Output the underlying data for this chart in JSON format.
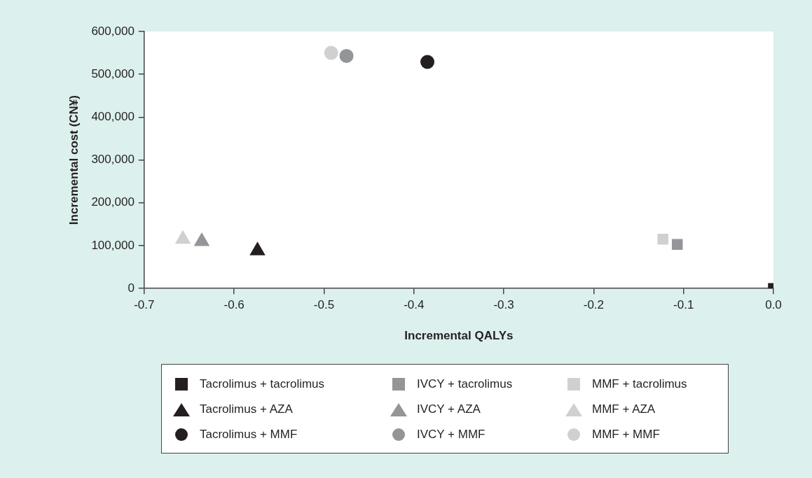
{
  "chart_data": {
    "type": "scatter",
    "xlabel": "Incremental QALYs",
    "ylabel": "Incremental cost (CN¥)",
    "xlim": [
      -0.7,
      0.0
    ],
    "xticks": [
      -0.7,
      -0.6,
      -0.5,
      -0.4,
      -0.3,
      -0.2,
      -0.1,
      {
        "value": 0,
        "label": "0.0"
      }
    ],
    "ylim": [
      0,
      600000
    ],
    "yticks": [
      0,
      {
        "value": 100000,
        "label": "100,000"
      },
      {
        "value": 200000,
        "label": "200,000"
      },
      {
        "value": 300000,
        "label": "300,000"
      },
      {
        "value": 400000,
        "label": "400,000"
      },
      {
        "value": 500000,
        "label": "500,000"
      },
      {
        "value": 600000,
        "label": "600,000"
      }
    ],
    "grid": false,
    "legend": "bottom",
    "series": [
      {
        "name": "Tacrolimus + tacrolimus",
        "color": "#231f20",
        "marker": "square",
        "x": [
          0.0
        ],
        "values": [
          0
        ]
      },
      {
        "name": "Tacrolimus + AZA",
        "color": "#231f20",
        "marker": "triangle",
        "x": [
          -0.574
        ],
        "values": [
          88000
        ]
      },
      {
        "name": "Tacrolimus + MMF",
        "color": "#231f20",
        "marker": "circle",
        "x": [
          -0.385
        ],
        "values": [
          529000
        ]
      },
      {
        "name": "IVCY + tacrolimus",
        "color": "#939598",
        "marker": "square",
        "x": [
          -0.107
        ],
        "values": [
          103000
        ]
      },
      {
        "name": "IVCY + AZA",
        "color": "#939598",
        "marker": "triangle",
        "x": [
          -0.636
        ],
        "values": [
          110000
        ]
      },
      {
        "name": "IVCY + MMF",
        "color": "#939598",
        "marker": "circle",
        "x": [
          -0.475
        ],
        "values": [
          543000
        ]
      },
      {
        "name": "MMF + tacrolimus",
        "color": "#cfd0d2",
        "marker": "square",
        "x": [
          -0.123
        ],
        "values": [
          115000
        ]
      },
      {
        "name": "MMF + AZA",
        "color": "#cfd0d2",
        "marker": "triangle",
        "x": [
          -0.657
        ],
        "values": [
          115000
        ]
      },
      {
        "name": "MMF + MMF",
        "color": "#cfd0d2",
        "marker": "circle",
        "x": [
          -0.492
        ],
        "values": [
          550000
        ]
      }
    ]
  }
}
